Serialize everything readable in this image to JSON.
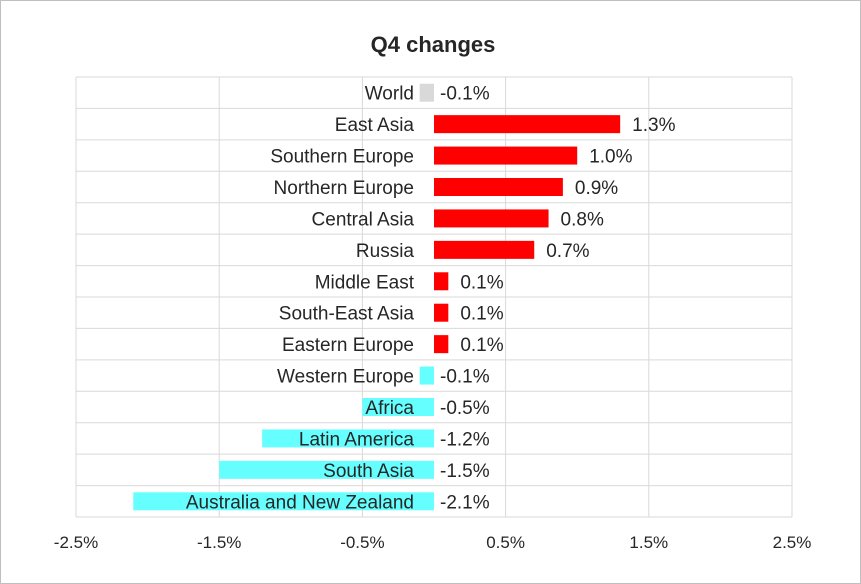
{
  "chart_data": {
    "type": "bar",
    "orientation": "horizontal",
    "title": "Q4 changes",
    "xlabel": "",
    "ylabel": "",
    "xlim": [
      -2.5,
      2.5
    ],
    "x_ticks": [
      -2.5,
      -1.5,
      -0.5,
      0.5,
      1.5,
      2.5
    ],
    "x_tick_labels": [
      "-2.5%",
      "-1.5%",
      "-0.5%",
      "0.5%",
      "1.5%",
      "2.5%"
    ],
    "grid": true,
    "legend": "none",
    "categories": [
      "World",
      "East Asia",
      "Southern Europe",
      "Northern Europe",
      "Central Asia",
      "Russia",
      "Middle East",
      "South-East Asia",
      "Eastern Europe",
      "Western Europe",
      "Africa",
      "Latin America",
      "South Asia",
      "Australia and New Zealand"
    ],
    "values": [
      -0.1,
      1.3,
      1.0,
      0.9,
      0.8,
      0.7,
      0.1,
      0.1,
      0.1,
      -0.1,
      -0.5,
      -1.2,
      -1.5,
      -2.1
    ],
    "value_labels": [
      "-0.1%",
      "1.3%",
      "1.0%",
      "0.9%",
      "0.8%",
      "0.7%",
      "0.1%",
      "0.1%",
      "0.1%",
      "-0.1%",
      "-0.5%",
      "-1.2%",
      "-1.5%",
      "-2.1%"
    ],
    "colors": {
      "world": "#d9d9d9",
      "positive": "#ff0000",
      "negative": "#66ffff"
    }
  }
}
